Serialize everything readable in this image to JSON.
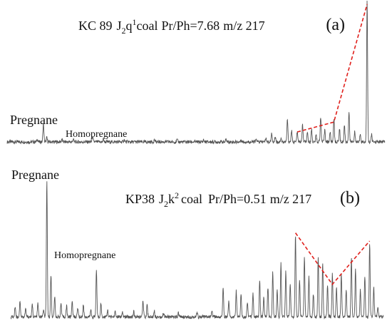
{
  "colors": {
    "trace": "#555555",
    "trend": "#e0201c",
    "text": "#111111"
  },
  "chart_data": [
    {
      "type": "line",
      "panel_label": "(a)",
      "title": {
        "sample": "KC 89",
        "formation": "J",
        "formation_sub": "2",
        "formation_letter": "q",
        "formation_sup": "1",
        "lithology": "coal",
        "ratio": "Pr/Ph=7.68",
        "ion": "m/z 217"
      },
      "annotations": [
        {
          "text": "Pregnane",
          "x": 53
        },
        {
          "text": "Homopregnane",
          "x": 123
        }
      ],
      "xlim": [
        0,
        100
      ],
      "ylim": [
        0,
        100
      ],
      "baseline": 3,
      "peaks": [
        [
          8,
          2
        ],
        [
          9.6,
          13
        ],
        [
          10.5,
          3
        ],
        [
          14.5,
          2
        ],
        [
          17.5,
          2
        ],
        [
          22.6,
          4
        ],
        [
          25.5,
          2
        ],
        [
          31,
          1.5
        ],
        [
          39,
          1.5
        ],
        [
          45,
          1.5
        ],
        [
          52,
          1.5
        ],
        [
          58,
          2
        ],
        [
          62,
          1.5
        ],
        [
          66,
          2
        ],
        [
          68.5,
          3
        ],
        [
          70,
          6
        ],
        [
          71,
          4
        ],
        [
          72.5,
          3
        ],
        [
          74.2,
          16
        ],
        [
          75.3,
          8
        ],
        [
          76.8,
          7
        ],
        [
          78.2,
          12
        ],
        [
          79.5,
          6
        ],
        [
          80.6,
          9
        ],
        [
          81.8,
          5
        ],
        [
          83,
          18
        ],
        [
          84.1,
          9
        ],
        [
          85.5,
          7
        ],
        [
          86.5,
          17
        ],
        [
          88,
          9
        ],
        [
          89.3,
          12
        ],
        [
          90.5,
          21
        ],
        [
          92,
          7
        ],
        [
          93.5,
          6
        ],
        [
          95.3,
          100
        ],
        [
          96.5,
          5
        ]
      ],
      "trend_lines": [
        {
          "x": [
            76.8,
            86.5,
            95.3
          ],
          "y": [
            10,
            17,
            100
          ]
        }
      ]
    },
    {
      "type": "line",
      "panel_label": "(b)",
      "title": {
        "sample": "KP38",
        "formation": "J",
        "formation_sub": "2",
        "formation_letter": "k",
        "formation_sup": "2",
        "lithology": "coal",
        "ratio": "Pr/Ph=0.51",
        "ion": "m/z 217"
      },
      "annotations": [
        {
          "text": "Pregnane",
          "x": 18
        },
        {
          "text": "Homopregnane",
          "x": 75
        }
      ],
      "xlim": [
        0,
        100
      ],
      "ylim": [
        0,
        100
      ],
      "baseline": 4,
      "peaks": [
        [
          1.2,
          8
        ],
        [
          2.5,
          12
        ],
        [
          4,
          6
        ],
        [
          5.8,
          9
        ],
        [
          7.3,
          10
        ],
        [
          8.8,
          5
        ],
        [
          9.7,
          100
        ],
        [
          10.8,
          31
        ],
        [
          11.8,
          15
        ],
        [
          13.5,
          10
        ],
        [
          15,
          8
        ],
        [
          16.5,
          12
        ],
        [
          18,
          7
        ],
        [
          19.5,
          9
        ],
        [
          21.5,
          5
        ],
        [
          23,
          35
        ],
        [
          24.2,
          10
        ],
        [
          26,
          5
        ],
        [
          28,
          4
        ],
        [
          30,
          3
        ],
        [
          33,
          4
        ],
        [
          35.5,
          12
        ],
        [
          36.6,
          9
        ],
        [
          38.5,
          5
        ],
        [
          41,
          3
        ],
        [
          45,
          3
        ],
        [
          50,
          3
        ],
        [
          54,
          4
        ],
        [
          57,
          22
        ],
        [
          58.5,
          12
        ],
        [
          60.5,
          19
        ],
        [
          61.8,
          17
        ],
        [
          63.5,
          11
        ],
        [
          65,
          18
        ],
        [
          66.8,
          28
        ],
        [
          67.9,
          15
        ],
        [
          69,
          22
        ],
        [
          70.3,
          33
        ],
        [
          71.5,
          20
        ],
        [
          72.5,
          40
        ],
        [
          73.8,
          34
        ],
        [
          75,
          25
        ],
        [
          76.4,
          60
        ],
        [
          77.5,
          28
        ],
        [
          78.8,
          45
        ],
        [
          80,
          30
        ],
        [
          81.2,
          17
        ],
        [
          82.5,
          45
        ],
        [
          83.7,
          40
        ],
        [
          85,
          23
        ],
        [
          86.3,
          32
        ],
        [
          87.4,
          22
        ],
        [
          88.7,
          32
        ],
        [
          90,
          20
        ],
        [
          91.4,
          45
        ],
        [
          92.5,
          35
        ],
        [
          93.8,
          20
        ],
        [
          95,
          30
        ],
        [
          96.3,
          55
        ],
        [
          97.4,
          22
        ],
        [
          98.5,
          8
        ]
      ],
      "trend_lines": [
        {
          "x": [
            76.4,
            86.3,
            96.3
          ],
          "y": [
            66,
            28,
            60
          ]
        }
      ]
    }
  ]
}
